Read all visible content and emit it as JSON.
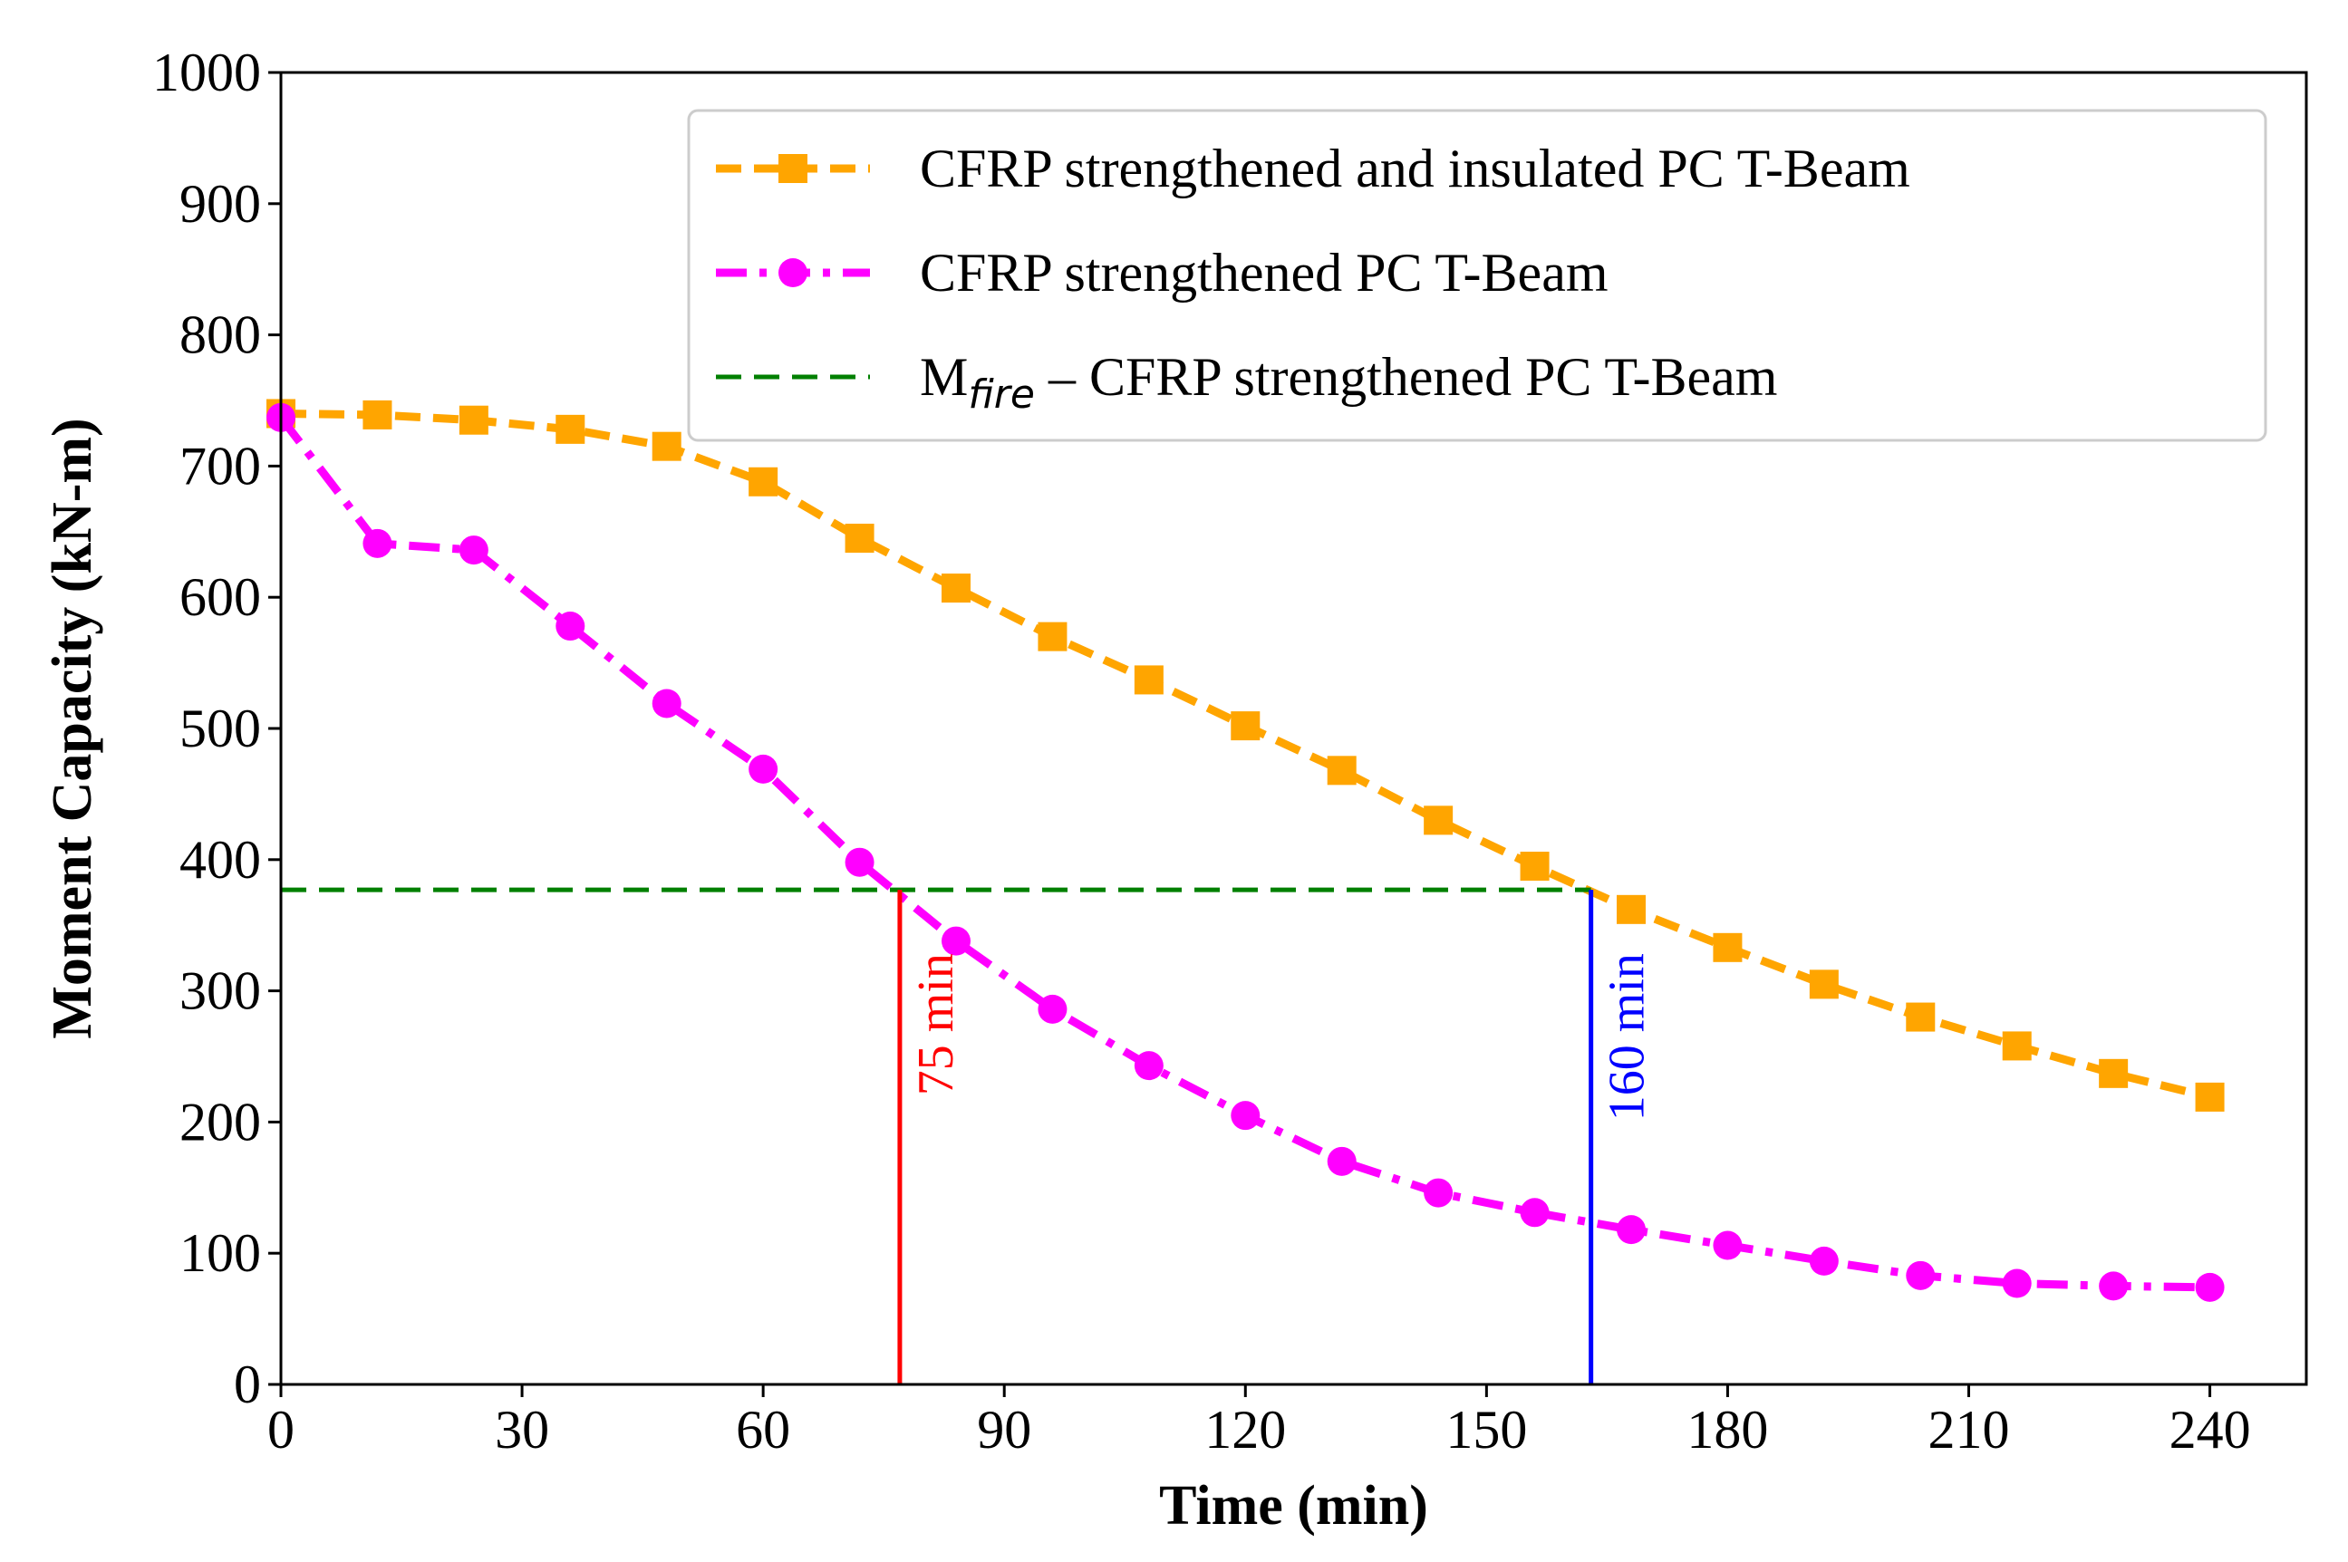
{
  "chart_data": {
    "type": "line",
    "title": "",
    "xlabel": "Time (min)",
    "ylabel": "Moment Capacity (kN-m)",
    "xlim": [
      0,
      252
    ],
    "ylim": [
      0,
      1000
    ],
    "xticks": [
      0,
      30,
      60,
      90,
      120,
      150,
      180,
      210,
      240
    ],
    "yticks": [
      0,
      100,
      200,
      300,
      400,
      500,
      600,
      700,
      800,
      900,
      1000
    ],
    "grid": false,
    "legend_position": "top-right",
    "series": [
      {
        "name": "CFRP strengthened and insulated PC T-Beam",
        "color": "#FFA500",
        "line_style": "dashed",
        "marker": "square",
        "x": [
          0,
          12,
          24,
          36,
          48,
          60,
          72,
          84,
          96,
          108,
          120,
          132,
          144,
          156,
          168,
          180,
          192,
          204,
          216,
          228,
          240
        ],
        "values": [
          740,
          739,
          735,
          728,
          715,
          688,
          645,
          607,
          570,
          537,
          502,
          468,
          430,
          395,
          362,
          333,
          305,
          280,
          258,
          237,
          219
        ]
      },
      {
        "name": "CFRP strengthened PC T-Beam",
        "color": "#FF00FF",
        "line_style": "dashdot",
        "marker": "circle",
        "x": [
          0,
          12,
          24,
          36,
          48,
          60,
          72,
          84,
          96,
          108,
          120,
          132,
          144,
          156,
          168,
          180,
          192,
          204,
          216,
          228,
          240
        ],
        "values": [
          737,
          641,
          636,
          578,
          519,
          469,
          398,
          338,
          286,
          243,
          205,
          170,
          146,
          131,
          118,
          106,
          94,
          83,
          77,
          75,
          74
        ]
      },
      {
        "name_prefix": "M",
        "name_subscript": "fire",
        "name_suffix": " – CFRP strengthened PC T-Beam",
        "color": "#008000",
        "line_style": "dashed",
        "marker": "none",
        "x": [
          0,
          163
        ],
        "values": [
          377,
          377
        ]
      }
    ],
    "annotations": [
      {
        "text": "75 min",
        "x": 77,
        "y_from": 0,
        "y_to": 377,
        "color": "#FF0000"
      },
      {
        "text": "160 min",
        "x": 163,
        "y_from": 0,
        "y_to": 377,
        "color": "#0000FF"
      }
    ]
  }
}
